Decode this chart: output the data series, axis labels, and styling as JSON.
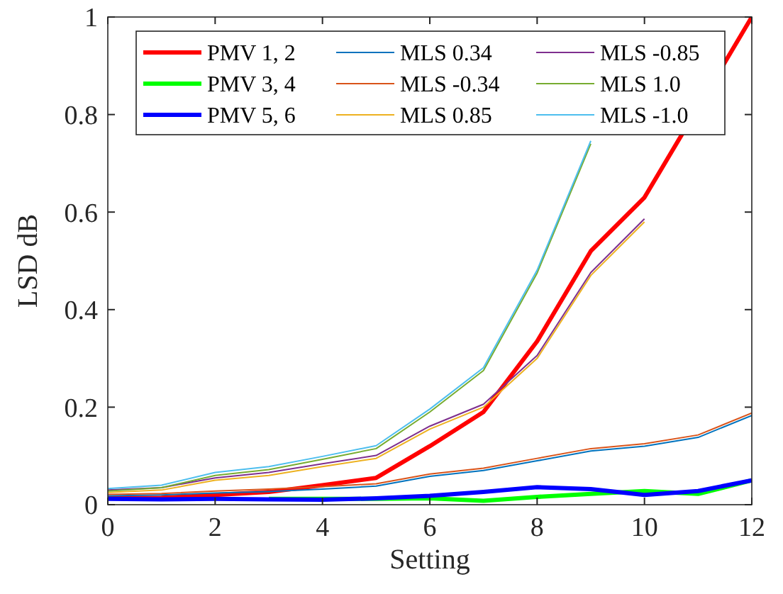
{
  "chart_data": {
    "type": "line",
    "xlabel": "Setting",
    "ylabel": "LSD dB",
    "x": [
      0,
      1,
      2,
      3,
      4,
      5,
      6,
      7,
      8,
      9,
      10,
      11,
      12
    ],
    "xlim": [
      0,
      12
    ],
    "xticks": [
      0,
      2,
      4,
      6,
      8,
      10,
      12
    ],
    "ylim": [
      0,
      1
    ],
    "yticks": [
      0,
      0.2,
      0.4,
      0.6,
      0.8,
      1
    ],
    "grid": false,
    "legend": "top",
    "series": [
      {
        "name": "PMV 1, 2",
        "color": "#ff0000",
        "values": [
          0.013,
          0.014,
          0.02,
          0.026,
          0.04,
          0.055,
          0.12,
          0.19,
          0.335,
          0.52,
          0.63,
          null,
          1.0
        ]
      },
      {
        "name": "PMV 3, 4",
        "color": "#00ff00",
        "values": [
          null,
          null,
          null,
          0.012,
          0.012,
          0.012,
          0.013,
          0.008,
          0.016,
          0.022,
          0.028,
          0.022,
          0.05
        ]
      },
      {
        "name": "PMV 5, 6",
        "color": "#0000ff",
        "values": [
          0.012,
          0.011,
          0.012,
          0.011,
          0.01,
          0.013,
          0.018,
          0.026,
          0.036,
          0.032,
          0.02,
          0.028,
          0.05
        ]
      },
      {
        "name": "MLS 0.34",
        "color": "#0072bd",
        "values": [
          0.018,
          0.02,
          0.024,
          0.027,
          0.032,
          0.038,
          0.058,
          0.07,
          0.09,
          0.11,
          0.12,
          0.138,
          0.183
        ]
      },
      {
        "name": "MLS -0.34",
        "color": "#d95319",
        "values": [
          0.021,
          0.023,
          0.028,
          0.032,
          0.037,
          0.043,
          0.063,
          0.075,
          0.095,
          0.115,
          0.125,
          0.143,
          0.188
        ]
      },
      {
        "name": "MLS 0.85",
        "color": "#edb120",
        "values": [
          0.025,
          0.03,
          0.05,
          0.06,
          0.078,
          0.095,
          0.155,
          0.2,
          0.3,
          0.47,
          0.58,
          null,
          null
        ]
      },
      {
        "name": "MLS -0.85",
        "color": "#7e2f8e",
        "values": [
          0.03,
          0.035,
          0.055,
          0.066,
          0.084,
          0.101,
          0.161,
          0.206,
          0.306,
          0.476,
          0.586,
          null,
          null
        ]
      },
      {
        "name": "MLS 1.0",
        "color": "#77ac30",
        "values": [
          0.028,
          0.035,
          0.06,
          0.072,
          0.093,
          0.115,
          0.19,
          0.275,
          0.475,
          0.74,
          null,
          null,
          null
        ]
      },
      {
        "name": "MLS -1.0",
        "color": "#4dbeee",
        "values": [
          0.033,
          0.04,
          0.066,
          0.078,
          0.099,
          0.121,
          0.196,
          0.281,
          0.481,
          0.746,
          null,
          null,
          null
        ]
      }
    ]
  }
}
